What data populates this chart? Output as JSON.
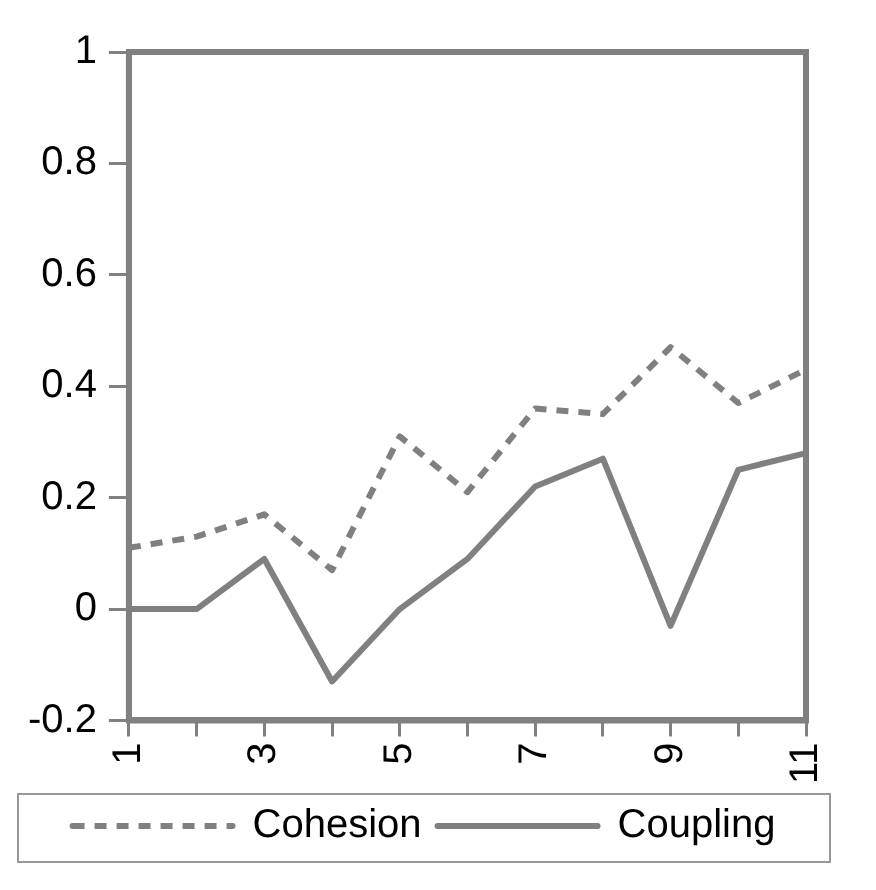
{
  "chart_data": {
    "type": "line",
    "categories": [
      "1",
      null,
      "3",
      null,
      "5",
      null,
      "7",
      null,
      "9",
      null,
      "11"
    ],
    "series": [
      {
        "name": "Cohesion",
        "color": "#808080",
        "line_style": "dashed",
        "values": [
          0.11,
          0.13,
          0.17,
          0.07,
          0.31,
          0.21,
          0.36,
          0.35,
          0.47,
          0.37,
          0.43
        ]
      },
      {
        "name": "Coupling",
        "color": "#808080",
        "line_style": "solid",
        "values": [
          0,
          0,
          0.09,
          -0.13,
          0,
          0.09,
          0.22,
          0.27,
          -0.03,
          0.25,
          0.28
        ]
      }
    ],
    "ylim": [
      -0.2,
      1
    ],
    "yticks": [
      -0.2,
      0,
      0.2,
      0.4,
      0.6,
      0.8,
      1
    ],
    "grid": false,
    "legend": "bottom",
    "marker": "none"
  }
}
